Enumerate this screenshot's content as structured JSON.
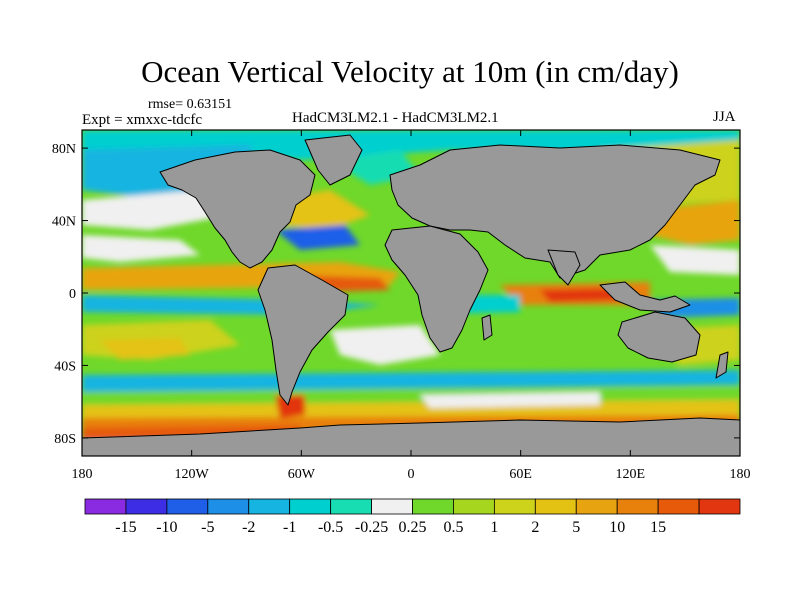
{
  "title": "Ocean Vertical Velocity at 10m (in cm/day)",
  "rmse_label": "rmse= 0.63151",
  "experiment_label": "Expt = xmxxc-tdcfc",
  "models_label": "HadCM3LM2.1 - HadCM3LM2.1",
  "season_label": "JJA",
  "axes": {
    "lon_ticks": [
      {
        "value": -180,
        "label": "180"
      },
      {
        "value": -120,
        "label": "120W"
      },
      {
        "value": -60,
        "label": "60W"
      },
      {
        "value": 0,
        "label": "0"
      },
      {
        "value": 60,
        "label": "60E"
      },
      {
        "value": 120,
        "label": "120E"
      },
      {
        "value": 180,
        "label": "180"
      }
    ],
    "lat_ticks": [
      {
        "value": 80,
        "label": "80N"
      },
      {
        "value": 40,
        "label": "40N"
      },
      {
        "value": 0,
        "label": "0"
      },
      {
        "value": -40,
        "label": "40S"
      },
      {
        "value": -80,
        "label": "80S"
      }
    ],
    "lon_range": [
      -180,
      180
    ],
    "lat_range": [
      -90,
      90
    ]
  },
  "colors": {
    "land": "#999999",
    "frame": "#000000"
  },
  "colorbar": {
    "colors": [
      "#8a2be2",
      "#3d2ee6",
      "#1f5fe8",
      "#1e8fe6",
      "#16b4e0",
      "#00cfd0",
      "#18dcb2",
      "#f0f0f0",
      "#6fd82a",
      "#a6d61e",
      "#cdd21a",
      "#e4c214",
      "#e8a410",
      "#e8800c",
      "#e65a0a",
      "#e23610"
    ],
    "labels": [
      "-15",
      "-10",
      "-5",
      "-2",
      "-1",
      "-0.5",
      "-0.25",
      "0.25",
      "0.5",
      "1",
      "2",
      "5",
      "10",
      "15"
    ]
  }
}
